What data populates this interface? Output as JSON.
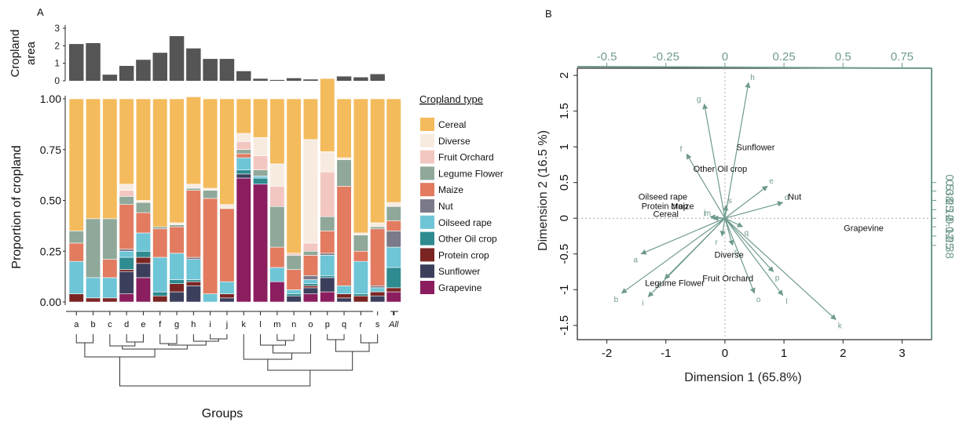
{
  "panel_a": {
    "letter": "A",
    "area_ylabel_1": "Cropland",
    "area_ylabel_2": "area",
    "prop_ylabel": "Proportion of cropland",
    "xlabel": "Groups",
    "legend_title": "Cropland type"
  },
  "panel_b": {
    "letter": "B",
    "xlabel": "Dimension 1 (65.8%)",
    "ylabel": "Dimension 2 (16.5 %)"
  },
  "chart_data": [
    {
      "type": "bar",
      "title": "",
      "ylabel": "Cropland area",
      "ylim": [
        0,
        3
      ],
      "yticks": [
        "0",
        "1",
        "2",
        "3"
      ],
      "categories": [
        "a",
        "b",
        "c",
        "d",
        "e",
        "f",
        "g",
        "h",
        "i",
        "j",
        "k",
        "l",
        "m",
        "n",
        "o",
        "p",
        "q",
        "r",
        "s"
      ],
      "values": [
        2.1,
        2.15,
        0.35,
        0.85,
        1.2,
        1.6,
        2.55,
        1.85,
        1.25,
        1.25,
        0.55,
        0.12,
        0.05,
        0.15,
        0.08,
        0.12,
        0.25,
        0.2,
        0.38
      ],
      "color": "#555555"
    },
    {
      "type": "bar",
      "stacked": true,
      "ylabel": "Proportion of cropland",
      "ylim": [
        0,
        1
      ],
      "yticks": [
        "0.00",
        "0.25",
        "0.50",
        "0.75",
        "1.00"
      ],
      "categories": [
        "a",
        "b",
        "c",
        "d",
        "e",
        "f",
        "g",
        "h",
        "i",
        "j",
        "k",
        "l",
        "m",
        "n",
        "o",
        "p",
        "q",
        "r",
        "s",
        "All"
      ],
      "legend_title": "Cropland type",
      "legend_position": "right",
      "series": [
        {
          "name": "Grapevine",
          "color": "#8b1e5f",
          "values": [
            0,
            0,
            0,
            0.04,
            0.12,
            0,
            0,
            0,
            0,
            0,
            0.61,
            0.58,
            0.1,
            0,
            0.04,
            0.05,
            0,
            0,
            0,
            0.05
          ]
        },
        {
          "name": "Sunflower",
          "color": "#3c3f5c",
          "values": [
            0,
            0,
            0,
            0.11,
            0.07,
            0,
            0.05,
            0.08,
            0,
            0.02,
            0.02,
            0,
            0,
            0.03,
            0.03,
            0.07,
            0.02,
            0,
            0.03,
            0
          ]
        },
        {
          "name": "Protein crop",
          "color": "#7b2523",
          "values": [
            0.04,
            0.02,
            0.02,
            0.01,
            0.03,
            0.03,
            0.04,
            0.02,
            0,
            0.02,
            0,
            0,
            0,
            0,
            0.01,
            0,
            0.02,
            0.03,
            0.02,
            0.02
          ]
        },
        {
          "name": "Other Oil crop",
          "color": "#2e8b8f",
          "values": [
            0,
            0,
            0,
            0.06,
            0.03,
            0.02,
            0.02,
            0.01,
            0,
            0,
            0.02,
            0.03,
            0,
            0.01,
            0.01,
            0.01,
            0,
            0.01,
            0,
            0.1
          ]
        },
        {
          "name": "Oilseed rape",
          "color": "#6ec5d6",
          "values": [
            0.16,
            0.1,
            0.1,
            0.03,
            0.09,
            0.17,
            0.13,
            0.1,
            0.04,
            0.06,
            0.06,
            0.01,
            0.07,
            0.02,
            0.02,
            0.1,
            0.04,
            0.16,
            0.02,
            0.1
          ]
        },
        {
          "name": "Nut",
          "color": "#7a7a8a",
          "values": [
            0,
            0,
            0,
            0.01,
            0,
            0,
            0,
            0.01,
            0,
            0,
            0,
            0,
            0,
            0,
            0.02,
            0.01,
            0,
            0,
            0.01,
            0.08
          ]
        },
        {
          "name": "Maize",
          "color": "#e27b5f",
          "values": [
            0.09,
            0,
            0.09,
            0.22,
            0.1,
            0.14,
            0.13,
            0.33,
            0.47,
            0.36,
            0.02,
            0,
            0.1,
            0.1,
            0.1,
            0.11,
            0.49,
            0.05,
            0.28,
            0.05
          ]
        },
        {
          "name": "Legume Flower",
          "color": "#8fa89a",
          "values": [
            0.06,
            0.29,
            0.2,
            0.04,
            0.05,
            0.01,
            0.01,
            0.01,
            0.04,
            0,
            0.02,
            0.03,
            0.2,
            0.07,
            0.02,
            0.07,
            0.13,
            0.08,
            0.01,
            0.07
          ]
        },
        {
          "name": "Fruit Orchard",
          "color": "#f3c7c1",
          "values": [
            0,
            0,
            0,
            0.03,
            0,
            0,
            0,
            0,
            0,
            0,
            0.04,
            0.07,
            0.1,
            0.01,
            0.04,
            0.22,
            0,
            0,
            0,
            0
          ]
        },
        {
          "name": "Diverse",
          "color": "#f7ebe0",
          "values": [
            0,
            0,
            0,
            0.03,
            0.01,
            0,
            0.01,
            0.02,
            0.01,
            0.02,
            0.04,
            0.09,
            0.11,
            0,
            0.51,
            0.1,
            0.01,
            0.01,
            0.02,
            0.02
          ]
        },
        {
          "name": "Cereal",
          "color": "#f4bb5d",
          "values": [
            0.65,
            0.59,
            0.59,
            0.42,
            0.5,
            0.63,
            0.61,
            0.43,
            0.44,
            0.52,
            0.17,
            0.19,
            0.32,
            0.76,
            0.2,
            0.36,
            0.29,
            0.66,
            0.61,
            0.51
          ]
        }
      ]
    },
    {
      "type": "scatter",
      "subtype": "biplot",
      "xlabel": "Dimension 1 (65.8%)",
      "ylabel": "Dimension 2 (16.5 %)",
      "xlim": [
        -2.5,
        3.5
      ],
      "ylim": [
        -1.7,
        2.1
      ],
      "xticks": [
        "-2",
        "-1",
        "0",
        "1",
        "2",
        "3"
      ],
      "yticks": [
        "-1.5",
        "-1",
        "-0.5",
        "0",
        "0.5",
        "1",
        "1.5",
        "2"
      ],
      "top_ticks": [
        "-0.5",
        "-0.25",
        "0",
        "0.25",
        "0.5",
        "0.75"
      ],
      "right_ticks": [
        "-0.38",
        "-0.25",
        "-0.12",
        "0",
        "0.12",
        "0.25",
        "0.38",
        "0.5"
      ],
      "cropland_points": [
        {
          "label": "Grapevine",
          "x": 2.35,
          "y": -0.18
        },
        {
          "label": "Nut",
          "x": 1.18,
          "y": 0.26
        },
        {
          "label": "Sunflower",
          "x": 0.52,
          "y": 0.95
        },
        {
          "label": "Other Oil crop",
          "x": -0.08,
          "y": 0.65
        },
        {
          "label": "Oilseed rape",
          "x": -1.05,
          "y": 0.26
        },
        {
          "label": "Protein crop",
          "x": -1.02,
          "y": 0.13
        },
        {
          "label": "Maize",
          "x": -0.72,
          "y": 0.13
        },
        {
          "label": "Cereal",
          "x": -1.0,
          "y": 0.02
        },
        {
          "label": "Diverse",
          "x": 0.07,
          "y": -0.55
        },
        {
          "label": "Fruit Orchard",
          "x": 0.05,
          "y": -0.88
        },
        {
          "label": "Legume Flower",
          "x": -0.85,
          "y": -0.95
        }
      ],
      "group_vectors": [
        {
          "label": "h",
          "x": 0.4,
          "y": 1.9
        },
        {
          "label": "g",
          "x": -0.35,
          "y": 1.6
        },
        {
          "label": "f",
          "x": -0.65,
          "y": 0.9
        },
        {
          "label": "e",
          "x": 0.72,
          "y": 0.45
        },
        {
          "label": "d",
          "x": 0.98,
          "y": 0.22
        },
        {
          "label": "a",
          "x": -1.42,
          "y": -0.5
        },
        {
          "label": "b",
          "x": -1.75,
          "y": -1.05
        },
        {
          "label": "c",
          "x": -1.02,
          "y": -0.85
        },
        {
          "label": "i",
          "x": -1.3,
          "y": -1.1
        },
        {
          "label": "k",
          "x": 1.88,
          "y": -1.42
        },
        {
          "label": "l",
          "x": 0.98,
          "y": -1.08
        },
        {
          "label": "o",
          "x": 0.5,
          "y": -1.05
        },
        {
          "label": "p",
          "x": 0.82,
          "y": -0.75
        },
        {
          "label": "q",
          "x": 0.3,
          "y": -0.12
        },
        {
          "label": "r",
          "x": -0.05,
          "y": -0.25
        },
        {
          "label": "n",
          "x": 0.13,
          "y": -0.38
        },
        {
          "label": "s",
          "x": 0.02,
          "y": 0.18
        },
        {
          "label": "j",
          "x": -0.25,
          "y": 0.02
        },
        {
          "label": "m",
          "x": -0.2,
          "y": 0.0
        }
      ]
    }
  ]
}
